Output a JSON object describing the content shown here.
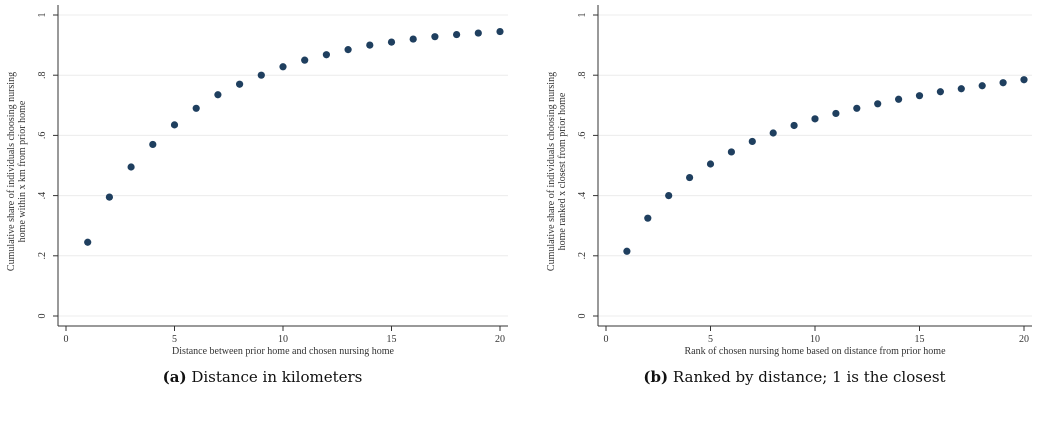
{
  "chart_data": [
    {
      "type": "scatter",
      "panel": "a",
      "xlabel": "Distance between prior home and chosen nursing home",
      "ylabel_lines": [
        "Cumulative share of individuals choosing nursing",
        "home within x km from prior home"
      ],
      "xlim": [
        0,
        20
      ],
      "ylim": [
        0,
        1
      ],
      "xticks": [
        0,
        5,
        10,
        15,
        20
      ],
      "yticks": [
        0,
        0.2,
        0.4,
        0.6,
        0.8,
        1
      ],
      "ytick_labels": [
        "0",
        ".2",
        ".4",
        ".6",
        ".8",
        "1"
      ],
      "grid": true,
      "marker_color": "#1f3f5f",
      "x": [
        1,
        2,
        3,
        4,
        5,
        6,
        7,
        8,
        9,
        10,
        11,
        12,
        13,
        14,
        15,
        16,
        17,
        18,
        19,
        20
      ],
      "y": [
        0.245,
        0.395,
        0.495,
        0.57,
        0.635,
        0.69,
        0.735,
        0.77,
        0.8,
        0.828,
        0.85,
        0.868,
        0.885,
        0.9,
        0.91,
        0.92,
        0.928,
        0.935,
        0.94,
        0.945
      ]
    },
    {
      "type": "scatter",
      "panel": "b",
      "xlabel": "Rank of chosen nursing home based on distance from prior home",
      "ylabel_lines": [
        "Cumulative share of individuals choosing nursing",
        "home ranked x closest from prior home"
      ],
      "xlim": [
        0,
        20
      ],
      "ylim": [
        0,
        1
      ],
      "xticks": [
        0,
        5,
        10,
        15,
        20
      ],
      "yticks": [
        0,
        0.2,
        0.4,
        0.6,
        0.8,
        1
      ],
      "ytick_labels": [
        "0",
        ".2",
        ".4",
        ".6",
        ".8",
        "1"
      ],
      "grid": true,
      "marker_color": "#1f3f5f",
      "x": [
        1,
        2,
        3,
        4,
        5,
        6,
        7,
        8,
        9,
        10,
        11,
        12,
        13,
        14,
        15,
        16,
        17,
        18,
        19,
        20
      ],
      "y": [
        0.215,
        0.325,
        0.4,
        0.46,
        0.505,
        0.545,
        0.58,
        0.608,
        0.633,
        0.655,
        0.673,
        0.69,
        0.705,
        0.72,
        0.732,
        0.745,
        0.755,
        0.765,
        0.775,
        0.785
      ]
    }
  ],
  "captions": [
    {
      "label": "(a)",
      "text": " Distance in kilometers"
    },
    {
      "label": "(b)",
      "text": " Ranked by distance; 1 is the closest"
    }
  ]
}
